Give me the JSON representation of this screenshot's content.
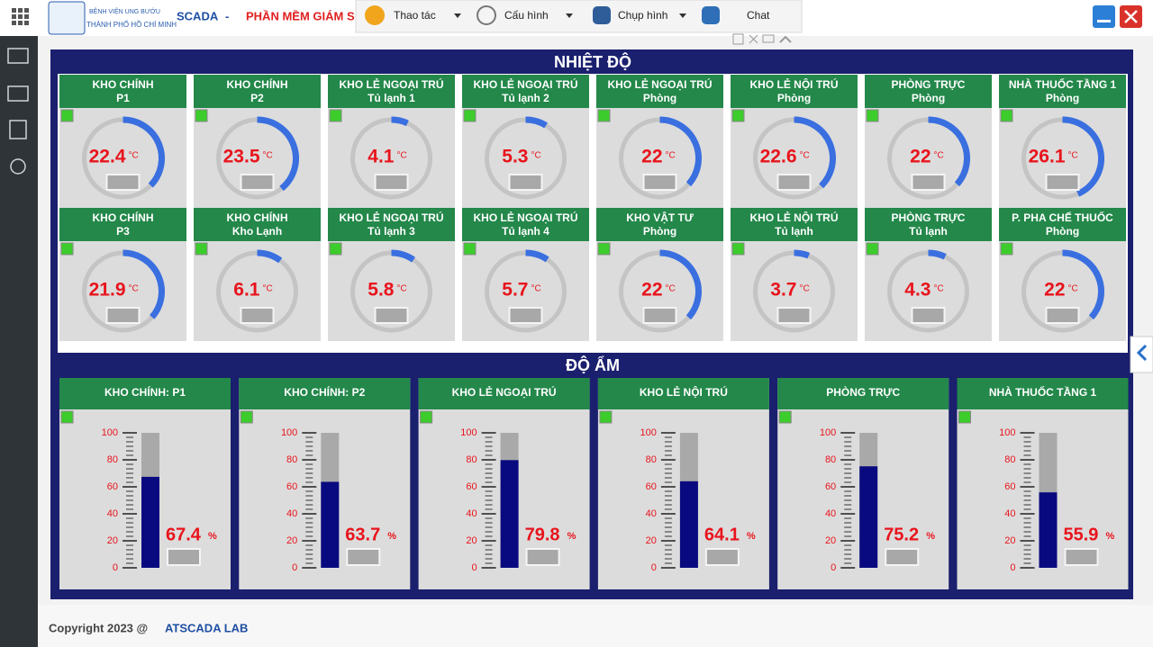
{
  "header": {
    "logo_line1": "BỆNH VIỆN UNG BƯỚU",
    "logo_line2": "THÀNH PHỐ HỒ CHÍ MINH",
    "app": "SCADA",
    "separator": "-",
    "subtitle": "PHẦN MỀM GIÁM S"
  },
  "toolbar": [
    "Thao tác",
    "Cấu hình",
    "Chụp hình",
    "Chat"
  ],
  "temperature": {
    "title": "NHIỆT ĐỘ",
    "unit": "°C",
    "gauge_range": [
      0,
      60
    ],
    "cards": [
      {
        "name": "KHO CHÍNH",
        "location": "P1",
        "value": 22.4
      },
      {
        "name": "KHO CHÍNH",
        "location": "P2",
        "value": 23.5
      },
      {
        "name": "KHO LẺ NGOẠI TRÚ",
        "location": "Tủ lạnh 1",
        "value": 4.1
      },
      {
        "name": "KHO LẺ NGOẠI TRÚ",
        "location": "Tủ lạnh 2",
        "value": 5.3
      },
      {
        "name": "KHO LẺ NGOẠI TRÚ",
        "location": "Phòng",
        "value": 22
      },
      {
        "name": "KHO LẺ NỘI TRÚ",
        "location": "Phòng",
        "value": 22.6
      },
      {
        "name": "PHÒNG TRỰC",
        "location": "Phòng",
        "value": 22
      },
      {
        "name": "NHÀ THUỐC TẦNG 1",
        "location": "Phòng",
        "value": 26.1
      },
      {
        "name": "KHO CHÍNH",
        "location": "P3",
        "value": 21.9
      },
      {
        "name": "KHO CHÍNH",
        "location": "Kho Lạnh",
        "value": 6.1
      },
      {
        "name": "KHO LẺ NGOẠI TRÚ",
        "location": "Tủ lạnh 3",
        "value": 5.8
      },
      {
        "name": "KHO LẺ NGOẠI TRÚ",
        "location": "Tủ lạnh 4",
        "value": 5.7
      },
      {
        "name": "KHO VẬT TƯ",
        "location": "Phòng",
        "value": 22
      },
      {
        "name": "KHO LẺ NỘI TRÚ",
        "location": "Tủ lạnh",
        "value": 3.7
      },
      {
        "name": "PHÒNG TRỰC",
        "location": "Tủ lạnh",
        "value": 4.3
      },
      {
        "name": "P. PHA CHẾ THUỐC",
        "location": "Phòng",
        "value": 22
      }
    ]
  },
  "humidity": {
    "title": "ĐỘ ẨM",
    "unit": "%",
    "ylim": [
      0,
      100
    ],
    "yticks": [
      0,
      20,
      40,
      60,
      80,
      100
    ],
    "cards": [
      {
        "name": "KHO CHÍNH: P1",
        "value": 67.4
      },
      {
        "name": "KHO CHÍNH: P2",
        "value": 63.7
      },
      {
        "name": "KHO LẺ NGOẠI TRÚ",
        "value": 79.8
      },
      {
        "name": "KHO LẺ NỘI TRÚ",
        "value": 64.1
      },
      {
        "name": "PHÒNG TRỰC",
        "value": 75.2
      },
      {
        "name": "NHÀ THUỐC TẦNG 1",
        "value": 55.9
      }
    ]
  },
  "footer": {
    "copyright": "Copyright 2023 @",
    "brand": "ATSCADA LAB"
  }
}
